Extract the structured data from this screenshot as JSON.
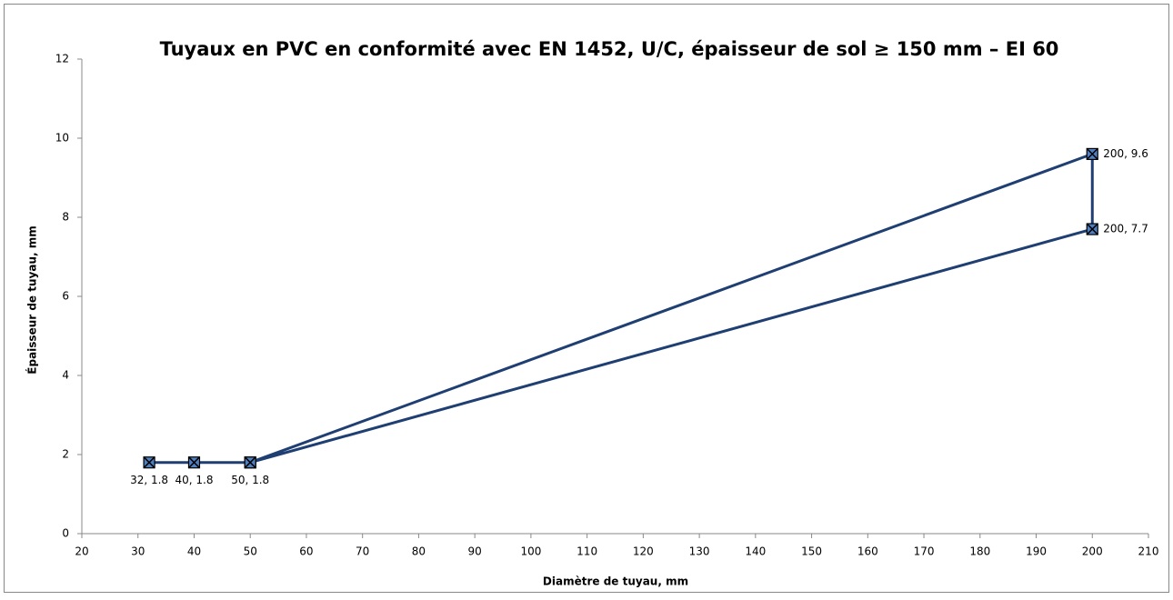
{
  "chart_data": {
    "type": "line",
    "title": "Tuyaux en PVC en conformité avec EN 1452, U/C, épaisseur de sol ≥ 150 mm – EI 60",
    "xlabel": "Diamètre de tuyau, mm",
    "ylabel": "Épaisseur de tuyau, mm",
    "xlim": [
      20,
      210
    ],
    "xticks": [
      20,
      30,
      40,
      50,
      60,
      70,
      80,
      90,
      100,
      110,
      120,
      130,
      140,
      150,
      160,
      170,
      180,
      190,
      200,
      210
    ],
    "ylim": [
      0,
      12
    ],
    "yticks": [
      0,
      2,
      4,
      6,
      8,
      10,
      12
    ],
    "grid": false,
    "series": [
      {
        "color": "#1f3f73",
        "x": [
          32,
          40,
          50,
          200,
          200,
          50
        ],
        "values": [
          1.8,
          1.8,
          1.8,
          9.6,
          7.7,
          1.8
        ],
        "value_labels": [
          "32, 1.8",
          "40, 1.8",
          "50, 1.8",
          "200, 9.6",
          "200, 7.7",
          null
        ]
      }
    ]
  }
}
